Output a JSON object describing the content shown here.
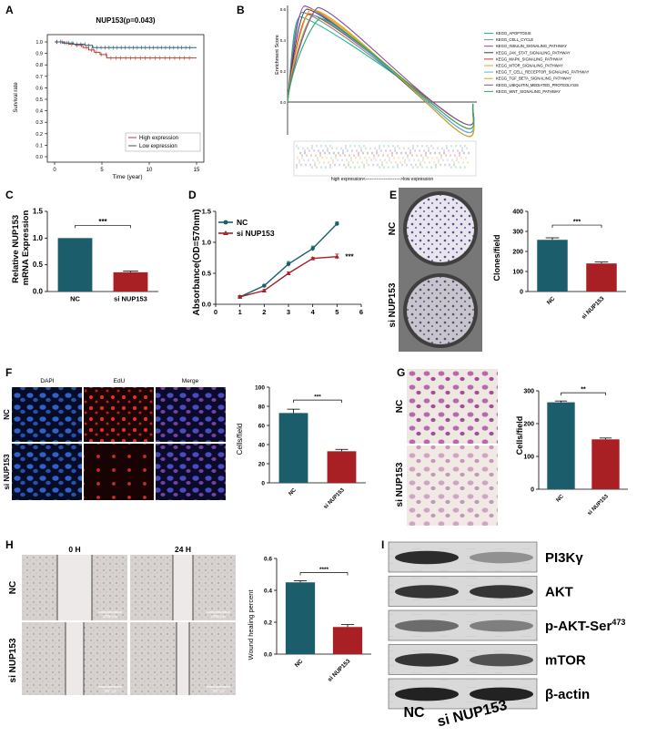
{
  "panels": {
    "A": {
      "letter": "A",
      "chart_data": {
        "type": "line",
        "title": "NUP153(p=0.043)",
        "xlabel": "Time (year)",
        "ylabel": "Survival rate",
        "xlim": [
          0,
          15
        ],
        "ylim": [
          0,
          1.0
        ],
        "x_ticks": [
          "0",
          "5",
          "10",
          "15"
        ],
        "y_ticks": [
          "0.0",
          "0.1",
          "0.2",
          "0.3",
          "0.4",
          "0.5",
          "0.6",
          "0.7",
          "0.8",
          "0.9",
          "1.0"
        ],
        "series": [
          {
            "name": "High expression",
            "color": "#c0392b",
            "x": [
              0,
              0.8,
              1.5,
              2.2,
              3.0,
              3.6,
              4.2,
              4.8,
              5.5,
              15
            ],
            "y": [
              1.0,
              0.99,
              0.98,
              0.97,
              0.95,
              0.93,
              0.91,
              0.89,
              0.86,
              0.86
            ]
          },
          {
            "name": "Low expression",
            "color": "#2e5e7e",
            "x": [
              0,
              1.0,
              2.0,
              3.2,
              4.0,
              15
            ],
            "y": [
              1.0,
              0.99,
              0.98,
              0.97,
              0.95,
              0.95
            ]
          }
        ]
      }
    },
    "B": {
      "letter": "B",
      "ylabel": "Enrichment Score",
      "ticks": [
        "0.6",
        "0.4",
        "0.2",
        "0.0"
      ],
      "footer": "high expression<----------------------->low expression",
      "legend": [
        "KEGG_APOPTOSIS",
        "KEGG_CELL_CYCLE",
        "KEGG_INSULIN_SIGNALING_PATHWAY",
        "KEGG_JAK_STAT_SIGNALING_PATHWAY",
        "KEGG_MAPK_SIGNALING_PATHWAY",
        "KEGG_MTOR_SIGNALING_PATHWAY",
        "KEGG_T_CELL_RECEPTOR_SIGNALING_PATHWAY",
        "KEGG_TGF_BETA_SIGNALING_PATHWAY",
        "KEGG_UBIQUITIN_MEDIATED_PROTEOLYSIS",
        "KEGG_WNT_SIGNALING_PATHWAY"
      ],
      "colors": [
        "#1abc9c",
        "#7f8c8d",
        "#8e44ad",
        "#2c3e50",
        "#c0392b",
        "#f39c12",
        "#5dade2",
        "#d4ac0d",
        "#884ea0",
        "#27ae60"
      ],
      "peaks": [
        0.55,
        0.58,
        0.62,
        0.6,
        0.57,
        0.6,
        0.56,
        0.59,
        0.61,
        0.54
      ]
    },
    "C": {
      "letter": "C",
      "chart_data": {
        "type": "bar",
        "categories": [
          "NC",
          "si NUP153"
        ],
        "values": [
          1.0,
          0.36
        ],
        "errors": [
          0,
          0.02
        ],
        "ylabel": "Relative NUP153 mRNA Expression",
        "ylim": [
          0,
          1.5
        ],
        "y_ticks": [
          "0.0",
          "0.5",
          "1.0",
          "1.5"
        ],
        "significance": "***",
        "colors": [
          "#1c5d6b",
          "#a81f24"
        ]
      }
    },
    "D": {
      "letter": "D",
      "chart_data": {
        "type": "line",
        "xlabel": "",
        "ylabel": "Absorbance(OD=570nm)",
        "xlim": [
          0,
          6
        ],
        "ylim": [
          0,
          1.5
        ],
        "x_ticks": [
          "0",
          "1",
          "2",
          "3",
          "4",
          "5",
          "6"
        ],
        "y_ticks": [
          "0.0",
          "0.5",
          "1.0",
          "1.5"
        ],
        "series": [
          {
            "name": "NC",
            "color": "#1c5d6b",
            "x": [
              1,
              2,
              3,
              4,
              5
            ],
            "y": [
              0.12,
              0.3,
              0.65,
              0.9,
              1.3
            ],
            "err": [
              0.02,
              0.02,
              0.04,
              0.04,
              0.03
            ]
          },
          {
            "name": "si NUP153",
            "color": "#a81f24",
            "x": [
              1,
              2,
              3,
              4,
              5
            ],
            "y": [
              0.12,
              0.22,
              0.5,
              0.74,
              0.77
            ],
            "err": [
              0.02,
              0.02,
              0.02,
              0.02,
              0.04
            ]
          }
        ],
        "significance": "***"
      }
    },
    "E": {
      "letter": "E",
      "row_labels": [
        "NC",
        "si NUP153"
      ],
      "chart_data": {
        "type": "bar",
        "categories": [
          "NC",
          "si NUP153"
        ],
        "values": [
          258,
          140
        ],
        "errors": [
          10,
          7
        ],
        "ylabel": "Clones/field",
        "ylim": [
          0,
          400
        ],
        "y_ticks": [
          "0",
          "100",
          "200",
          "300",
          "400"
        ],
        "significance": "***",
        "colors": [
          "#1c5d6b",
          "#a81f24"
        ]
      }
    },
    "F": {
      "letter": "F",
      "col_labels": [
        "DAPI",
        "EdU",
        "Merge"
      ],
      "row_labels": [
        "NC",
        "si NUP153"
      ],
      "chart_data": {
        "type": "bar",
        "categories": [
          "NC",
          "si NUP153"
        ],
        "values": [
          73,
          33
        ],
        "errors": [
          4,
          2
        ],
        "ylabel": "Cells/field",
        "ylim": [
          0,
          100
        ],
        "y_ticks": [
          "0",
          "20",
          "40",
          "60",
          "80",
          "100"
        ],
        "significance": "***",
        "colors": [
          "#1c5d6b",
          "#a81f24"
        ]
      }
    },
    "G": {
      "letter": "G",
      "row_labels": [
        "NC",
        "si NUP153"
      ],
      "chart_data": {
        "type": "bar",
        "categories": [
          "NC",
          "si NUP153"
        ],
        "values": [
          265,
          152
        ],
        "errors": [
          4,
          4
        ],
        "ylabel": "Cells/field",
        "ylim": [
          0,
          300
        ],
        "y_ticks": [
          "0",
          "100",
          "200",
          "300"
        ],
        "significance": "**",
        "colors": [
          "#1c5d6b",
          "#a81f24"
        ]
      }
    },
    "H": {
      "letter": "H",
      "col_labels": [
        "0 H",
        "24 H"
      ],
      "row_labels": [
        "NC",
        "si NUP153"
      ],
      "scale_label": "1000 μm",
      "chart_data": {
        "type": "bar",
        "categories": [
          "NC",
          "si NUP153"
        ],
        "values": [
          0.45,
          0.17
        ],
        "errors": [
          0.01,
          0.015
        ],
        "ylabel": "Wound healing percent",
        "ylim": [
          0,
          0.6
        ],
        "y_ticks": [
          "0.0",
          "0.2",
          "0.4",
          "0.6"
        ],
        "significance": "****",
        "colors": [
          "#1c5d6b",
          "#a81f24"
        ]
      }
    },
    "I": {
      "letter": "I",
      "proteins": [
        "PI3Kγ",
        "AKT",
        "p-AKT-Ser",
        "mTOR",
        "β-actin"
      ],
      "superscript": "473",
      "lanes": [
        "NC",
        "si NUP153"
      ],
      "intensity": [
        [
          0.9,
          0.35
        ],
        [
          0.85,
          0.85
        ],
        [
          0.55,
          0.45
        ],
        [
          0.85,
          0.7
        ],
        [
          0.95,
          0.95
        ]
      ]
    }
  }
}
